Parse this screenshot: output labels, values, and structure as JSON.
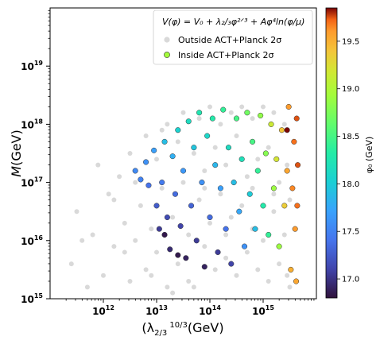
{
  "chart_data": {
    "type": "scatter",
    "x_scale": "log",
    "y_scale": "log",
    "xlim": [
      100000000000.0,
      1e+16
    ],
    "ylim": [
      1000000000000000.0,
      1e+20
    ],
    "xlabel_main": "(λ",
    "xlabel_sub": "2/3",
    "xlabel_power": "10/3",
    "xlabel_unit": "(GeV)",
    "ylabel_main": "M",
    "ylabel_unit": "(GeV)",
    "x_ticks": [
      {
        "value": 1000000000000.0,
        "mantissa": "10",
        "exp": "12"
      },
      {
        "value": 10000000000000.0,
        "mantissa": "10",
        "exp": "13"
      },
      {
        "value": 100000000000000.0,
        "mantissa": "10",
        "exp": "14"
      },
      {
        "value": 1000000000000000.0,
        "mantissa": "10",
        "exp": "15"
      }
    ],
    "y_ticks": [
      {
        "value": 1000000000000000.0,
        "mantissa": "10",
        "exp": "15"
      },
      {
        "value": 1e+16,
        "mantissa": "10",
        "exp": "16"
      },
      {
        "value": 1e+17,
        "mantissa": "10",
        "exp": "17"
      },
      {
        "value": 1e+18,
        "mantissa": "10",
        "exp": "18"
      },
      {
        "value": 1e+19,
        "mantissa": "10",
        "exp": "19"
      }
    ],
    "grid": false,
    "legend": {
      "placement": "top-right",
      "formula": "V(φ) = V₀ + λ₂/₃φ²ᐟ³ + Aφ⁴ln(φ/μ)",
      "entries": [
        {
          "label": "Outside ACT+Planck 2σ",
          "color": "#d9d9d9"
        },
        {
          "label": "Inside ACT+Planck 2σ",
          "color": "#a4fc3c"
        }
      ]
    },
    "colorbar": {
      "label": "φ₀ (GeV)",
      "colormap": "turbo",
      "range": [
        16.8,
        19.85
      ],
      "ticks": [
        "17.0",
        "17.5",
        "18.0",
        "18.5",
        "19.0",
        "19.5"
      ],
      "tick_values": [
        17.0,
        17.5,
        18.0,
        18.5,
        19.0,
        19.5
      ]
    },
    "series": [
      {
        "name": "Outside ACT+Planck 2σ",
        "color": "#d9d9d9",
        "points_log10": [
          [
            11.4,
            15.6
          ],
          [
            11.5,
            16.5
          ],
          [
            11.7,
            15.2
          ],
          [
            11.8,
            16.1
          ],
          [
            11.9,
            17.3
          ],
          [
            12.0,
            15.4
          ],
          [
            12.1,
            16.8
          ],
          [
            12.2,
            15.9
          ],
          [
            12.3,
            17.1
          ],
          [
            12.4,
            16.3
          ],
          [
            12.5,
            15.3
          ],
          [
            12.5,
            17.5
          ],
          [
            12.6,
            16.0
          ],
          [
            12.7,
            16.6
          ],
          [
            12.8,
            17.8
          ],
          [
            12.8,
            15.5
          ],
          [
            12.9,
            16.2
          ],
          [
            13.0,
            17.4
          ],
          [
            13.0,
            15.8
          ],
          [
            13.1,
            16.9
          ],
          [
            13.2,
            18.0
          ],
          [
            13.2,
            15.2
          ],
          [
            13.3,
            16.4
          ],
          [
            13.4,
            17.7
          ],
          [
            13.4,
            15.6
          ],
          [
            13.5,
            17.0
          ],
          [
            13.5,
            18.2
          ],
          [
            13.6,
            16.1
          ],
          [
            13.6,
            15.3
          ],
          [
            13.7,
            17.5
          ],
          [
            13.8,
            16.7
          ],
          [
            13.8,
            18.1
          ],
          [
            13.9,
            15.9
          ],
          [
            13.9,
            17.2
          ],
          [
            14.0,
            16.3
          ],
          [
            14.0,
            18.3
          ],
          [
            14.1,
            15.5
          ],
          [
            14.1,
            17.6
          ],
          [
            14.2,
            16.8
          ],
          [
            14.2,
            18.0
          ],
          [
            14.3,
            15.7
          ],
          [
            14.3,
            17.3
          ],
          [
            14.4,
            16.4
          ],
          [
            14.4,
            18.2
          ],
          [
            14.5,
            15.4
          ],
          [
            14.5,
            17.8
          ],
          [
            14.6,
            16.6
          ],
          [
            14.6,
            18.3
          ],
          [
            14.7,
            15.8
          ],
          [
            14.7,
            17.1
          ],
          [
            14.8,
            16.2
          ],
          [
            14.8,
            18.1
          ],
          [
            14.9,
            15.5
          ],
          [
            14.9,
            17.4
          ],
          [
            15.0,
            16.0
          ],
          [
            15.0,
            18.3
          ],
          [
            15.1,
            15.3
          ],
          [
            15.1,
            17.6
          ],
          [
            15.2,
            16.5
          ],
          [
            15.2,
            18.2
          ],
          [
            15.3,
            15.6
          ],
          [
            15.3,
            17.0
          ],
          [
            15.4,
            16.1
          ],
          [
            15.4,
            18.0
          ],
          [
            15.45,
            15.4
          ],
          [
            15.45,
            17.3
          ],
          [
            15.5,
            16.7
          ],
          [
            15.5,
            15.2
          ],
          [
            13.3,
            15.1
          ],
          [
            13.7,
            15.2
          ],
          [
            12.2,
            16.7
          ],
          [
            12.6,
            17.0
          ],
          [
            13.1,
            17.9
          ],
          [
            13.9,
            16.9
          ],
          [
            14.3,
            16.1
          ],
          [
            14.8,
            16.9
          ],
          [
            15.2,
            16.8
          ],
          [
            12.4,
            15.8
          ],
          [
            11.6,
            16.0
          ],
          [
            12.9,
            15.4
          ]
        ]
      },
      {
        "name": "Inside ACT+Planck 2σ",
        "points_log10_phi0": [
          [
            12.6,
            17.2,
            17.55
          ],
          [
            12.7,
            17.05,
            17.5
          ],
          [
            12.8,
            17.35,
            17.6
          ],
          [
            12.85,
            16.95,
            17.4
          ],
          [
            12.95,
            17.55,
            17.7
          ],
          [
            13.0,
            16.6,
            17.25
          ],
          [
            13.05,
            16.2,
            17.05
          ],
          [
            13.1,
            17.0,
            17.45
          ],
          [
            13.15,
            17.7,
            17.9
          ],
          [
            13.2,
            16.4,
            17.15
          ],
          [
            13.25,
            15.85,
            16.95
          ],
          [
            13.3,
            17.45,
            17.8
          ],
          [
            13.35,
            16.8,
            17.35
          ],
          [
            13.4,
            17.9,
            18.05
          ],
          [
            13.45,
            16.25,
            17.1
          ],
          [
            13.5,
            17.2,
            17.65
          ],
          [
            13.55,
            15.7,
            16.9
          ],
          [
            13.6,
            18.05,
            18.15
          ],
          [
            13.65,
            16.6,
            17.3
          ],
          [
            13.7,
            17.6,
            17.95
          ],
          [
            13.75,
            16.0,
            17.05
          ],
          [
            13.8,
            18.2,
            18.25
          ],
          [
            13.85,
            17.0,
            17.6
          ],
          [
            13.9,
            15.55,
            16.9
          ],
          [
            13.95,
            17.8,
            18.1
          ],
          [
            14.0,
            16.4,
            17.35
          ],
          [
            14.05,
            18.1,
            18.3
          ],
          [
            14.1,
            17.3,
            17.85
          ],
          [
            14.15,
            15.8,
            17.05
          ],
          [
            14.2,
            16.9,
            17.7
          ],
          [
            14.25,
            18.25,
            18.4
          ],
          [
            14.3,
            16.2,
            17.4
          ],
          [
            14.35,
            17.6,
            18.15
          ],
          [
            14.4,
            15.6,
            17.1
          ],
          [
            14.45,
            17.0,
            17.9
          ],
          [
            14.5,
            18.1,
            18.5
          ],
          [
            14.55,
            16.5,
            17.75
          ],
          [
            14.6,
            17.4,
            18.2
          ],
          [
            14.65,
            15.9,
            17.6
          ],
          [
            14.7,
            18.2,
            18.7
          ],
          [
            14.75,
            16.8,
            18.0
          ],
          [
            14.8,
            17.7,
            18.5
          ],
          [
            14.85,
            16.2,
            17.9
          ],
          [
            14.9,
            17.2,
            18.4
          ],
          [
            14.95,
            18.15,
            18.85
          ],
          [
            15.0,
            16.6,
            18.3
          ],
          [
            15.05,
            17.5,
            18.8
          ],
          [
            15.1,
            16.1,
            18.4
          ],
          [
            15.15,
            18.0,
            19.15
          ],
          [
            15.2,
            16.9,
            18.9
          ],
          [
            15.25,
            17.4,
            19.2
          ],
          [
            15.3,
            15.9,
            18.9
          ],
          [
            15.35,
            17.9,
            19.4
          ],
          [
            15.4,
            16.6,
            19.35
          ],
          [
            15.45,
            17.2,
            19.55
          ],
          [
            15.48,
            18.3,
            19.6
          ],
          [
            15.52,
            15.5,
            19.5
          ],
          [
            15.55,
            16.9,
            19.65
          ],
          [
            15.58,
            17.7,
            19.7
          ],
          [
            15.6,
            16.2,
            19.6
          ],
          [
            15.62,
            15.3,
            19.55
          ],
          [
            15.63,
            18.1,
            19.75
          ],
          [
            15.64,
            16.6,
            19.7
          ],
          [
            15.65,
            17.3,
            19.75
          ],
          [
            15.45,
            17.9,
            19.85
          ],
          [
            13.15,
            16.1,
            16.85
          ],
          [
            13.4,
            15.75,
            16.85
          ]
        ]
      }
    ]
  }
}
